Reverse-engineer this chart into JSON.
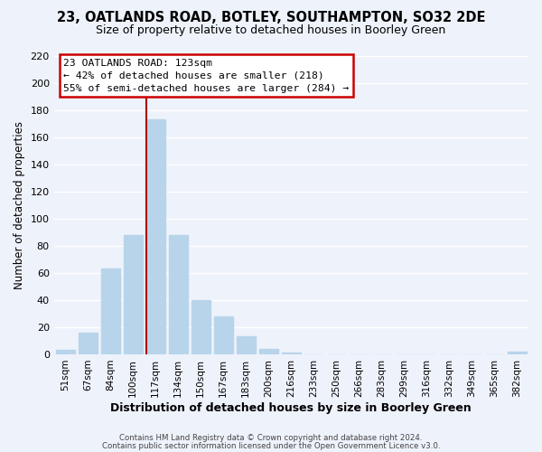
{
  "title1": "23, OATLANDS ROAD, BOTLEY, SOUTHAMPTON, SO32 2DE",
  "title2": "Size of property relative to detached houses in Boorley Green",
  "xlabel": "Distribution of detached houses by size in Boorley Green",
  "ylabel": "Number of detached properties",
  "bar_labels": [
    "51sqm",
    "67sqm",
    "84sqm",
    "100sqm",
    "117sqm",
    "134sqm",
    "150sqm",
    "167sqm",
    "183sqm",
    "200sqm",
    "216sqm",
    "233sqm",
    "250sqm",
    "266sqm",
    "283sqm",
    "299sqm",
    "316sqm",
    "332sqm",
    "349sqm",
    "365sqm",
    "382sqm"
  ],
  "bar_values": [
    3,
    16,
    63,
    88,
    173,
    88,
    40,
    28,
    13,
    4,
    1,
    0,
    0,
    0,
    0,
    0,
    0,
    0,
    0,
    0,
    2
  ],
  "bar_color": "#b8d4ea",
  "vline_color": "#aa0000",
  "annotation_title": "23 OATLANDS ROAD: 123sqm",
  "annotation_line1": "← 42% of detached houses are smaller (218)",
  "annotation_line2": "55% of semi-detached houses are larger (284) →",
  "annotation_box_color": "#ffffff",
  "annotation_box_edge": "#cc0000",
  "ylim": [
    0,
    220
  ],
  "yticks": [
    0,
    20,
    40,
    60,
    80,
    100,
    120,
    140,
    160,
    180,
    200,
    220
  ],
  "footer1": "Contains HM Land Registry data © Crown copyright and database right 2024.",
  "footer2": "Contains public sector information licensed under the Open Government Licence v3.0.",
  "bg_color": "#eef2fb",
  "grid_color": "#ffffff",
  "title1_fontsize": 10.5,
  "title2_fontsize": 9.0
}
